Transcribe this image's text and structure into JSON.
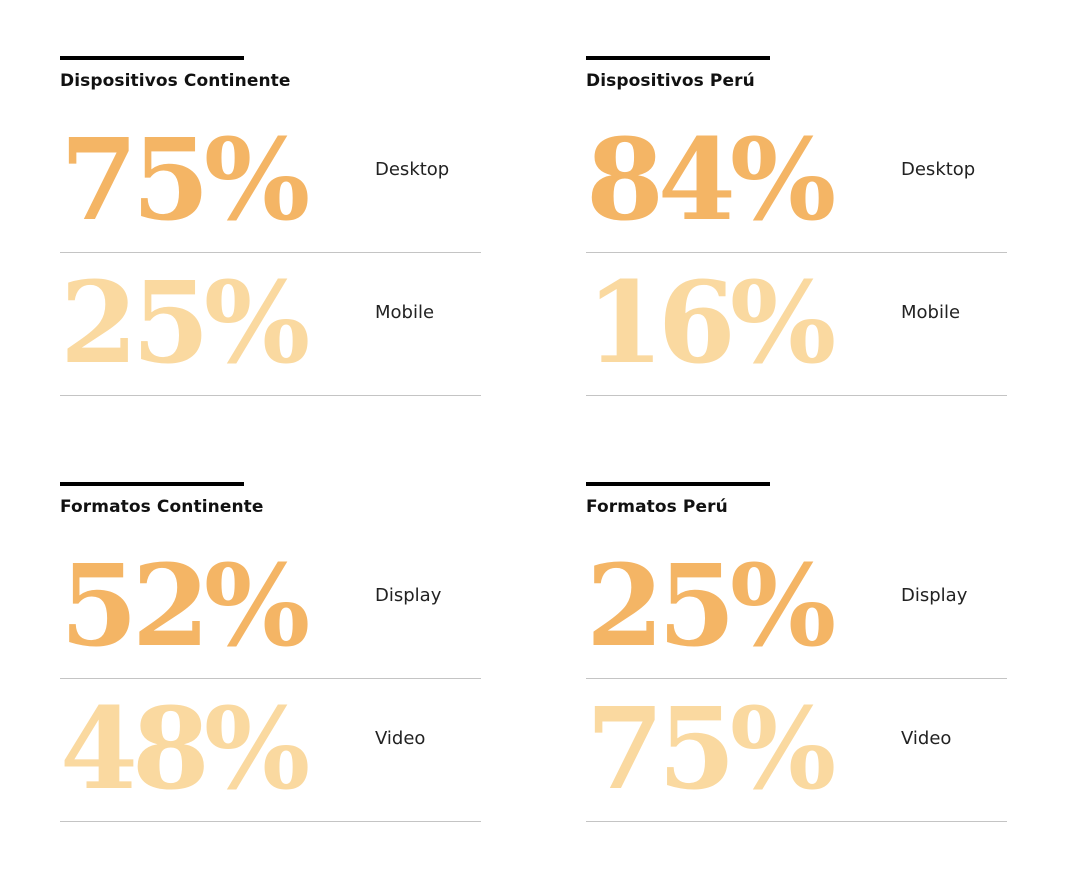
{
  "colors": {
    "primary": "#f4b565",
    "secondary": "#fad9a0",
    "rule": "#000000",
    "divider": "#c4c4c4"
  },
  "chart_data": [
    {
      "type": "table",
      "title": "Dispositivos Continente",
      "rows": [
        {
          "value": "75%",
          "label": "Desktop",
          "color": "#f4b565"
        },
        {
          "value": "25%",
          "label": "Mobile",
          "color": "#fad9a0"
        }
      ]
    },
    {
      "type": "table",
      "title": "Dispositivos Perú",
      "rows": [
        {
          "value": "84%",
          "label": "Desktop",
          "color": "#f4b565"
        },
        {
          "value": "16%",
          "label": "Mobile",
          "color": "#fad9a0"
        }
      ]
    },
    {
      "type": "table",
      "title": "Formatos Continente",
      "rows": [
        {
          "value": "52%",
          "label": "Display",
          "color": "#f4b565"
        },
        {
          "value": "48%",
          "label": "Video",
          "color": "#fad9a0"
        }
      ]
    },
    {
      "type": "table",
      "title": "Formatos Perú",
      "rows": [
        {
          "value": "25%",
          "label": "Display",
          "color": "#f4b565"
        },
        {
          "value": "75%",
          "label": "Video",
          "color": "#fad9a0"
        }
      ]
    }
  ]
}
